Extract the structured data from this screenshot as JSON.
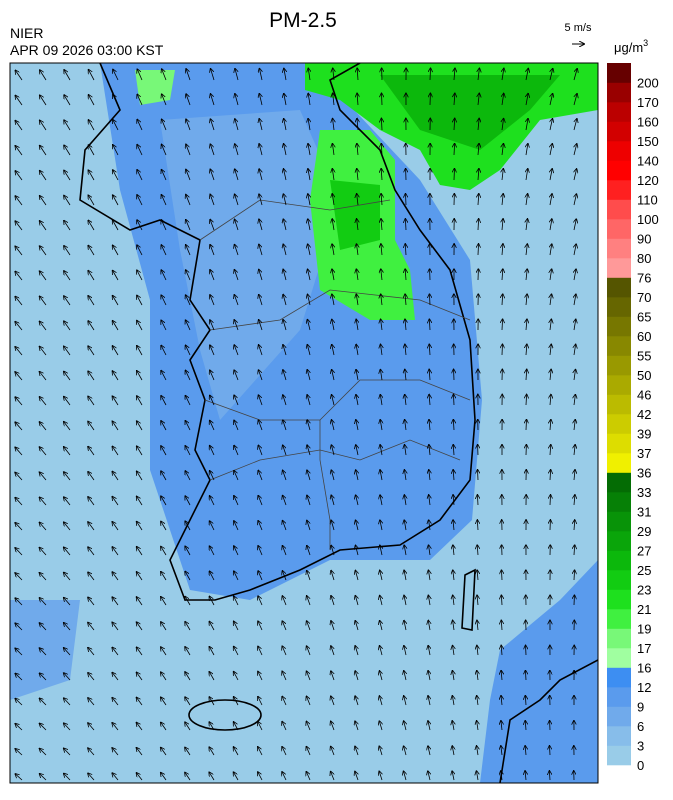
{
  "header": {
    "title": "PM-2.5",
    "agency": "NIER",
    "timestamp": "APR 09 2026 03:00 KST"
  },
  "wind_scale": {
    "label": "5 m/s"
  },
  "colorbar": {
    "unit": "μg/m",
    "unit_power": "3",
    "labels": [
      0,
      3,
      6,
      9,
      12,
      16,
      17,
      19,
      21,
      23,
      25,
      27,
      29,
      31,
      33,
      36,
      37,
      39,
      42,
      46,
      50,
      55,
      60,
      65,
      70,
      76,
      80,
      90,
      100,
      110,
      120,
      140,
      150,
      160,
      170,
      200
    ],
    "colors": [
      "#99cce8",
      "#87bdea",
      "#70aaeb",
      "#5a9bed",
      "#3d8ef2",
      "#a0ffa0",
      "#78f878",
      "#40f040",
      "#1ee01e",
      "#12cc12",
      "#0cb80c",
      "#0aa50a",
      "#089308",
      "#068006",
      "#046c04",
      "#f0f000",
      "#dddd00",
      "#cccc00",
      "#bbbb00",
      "#aaaa00",
      "#999900",
      "#888800",
      "#777700",
      "#666600",
      "#555500",
      "#ff9999",
      "#ff8080",
      "#ff6666",
      "#ff4c4c",
      "#ff2020",
      "#ff0000",
      "#ee0000",
      "#d20000",
      "#bb0000",
      "#990000",
      "#660000"
    ]
  }
}
